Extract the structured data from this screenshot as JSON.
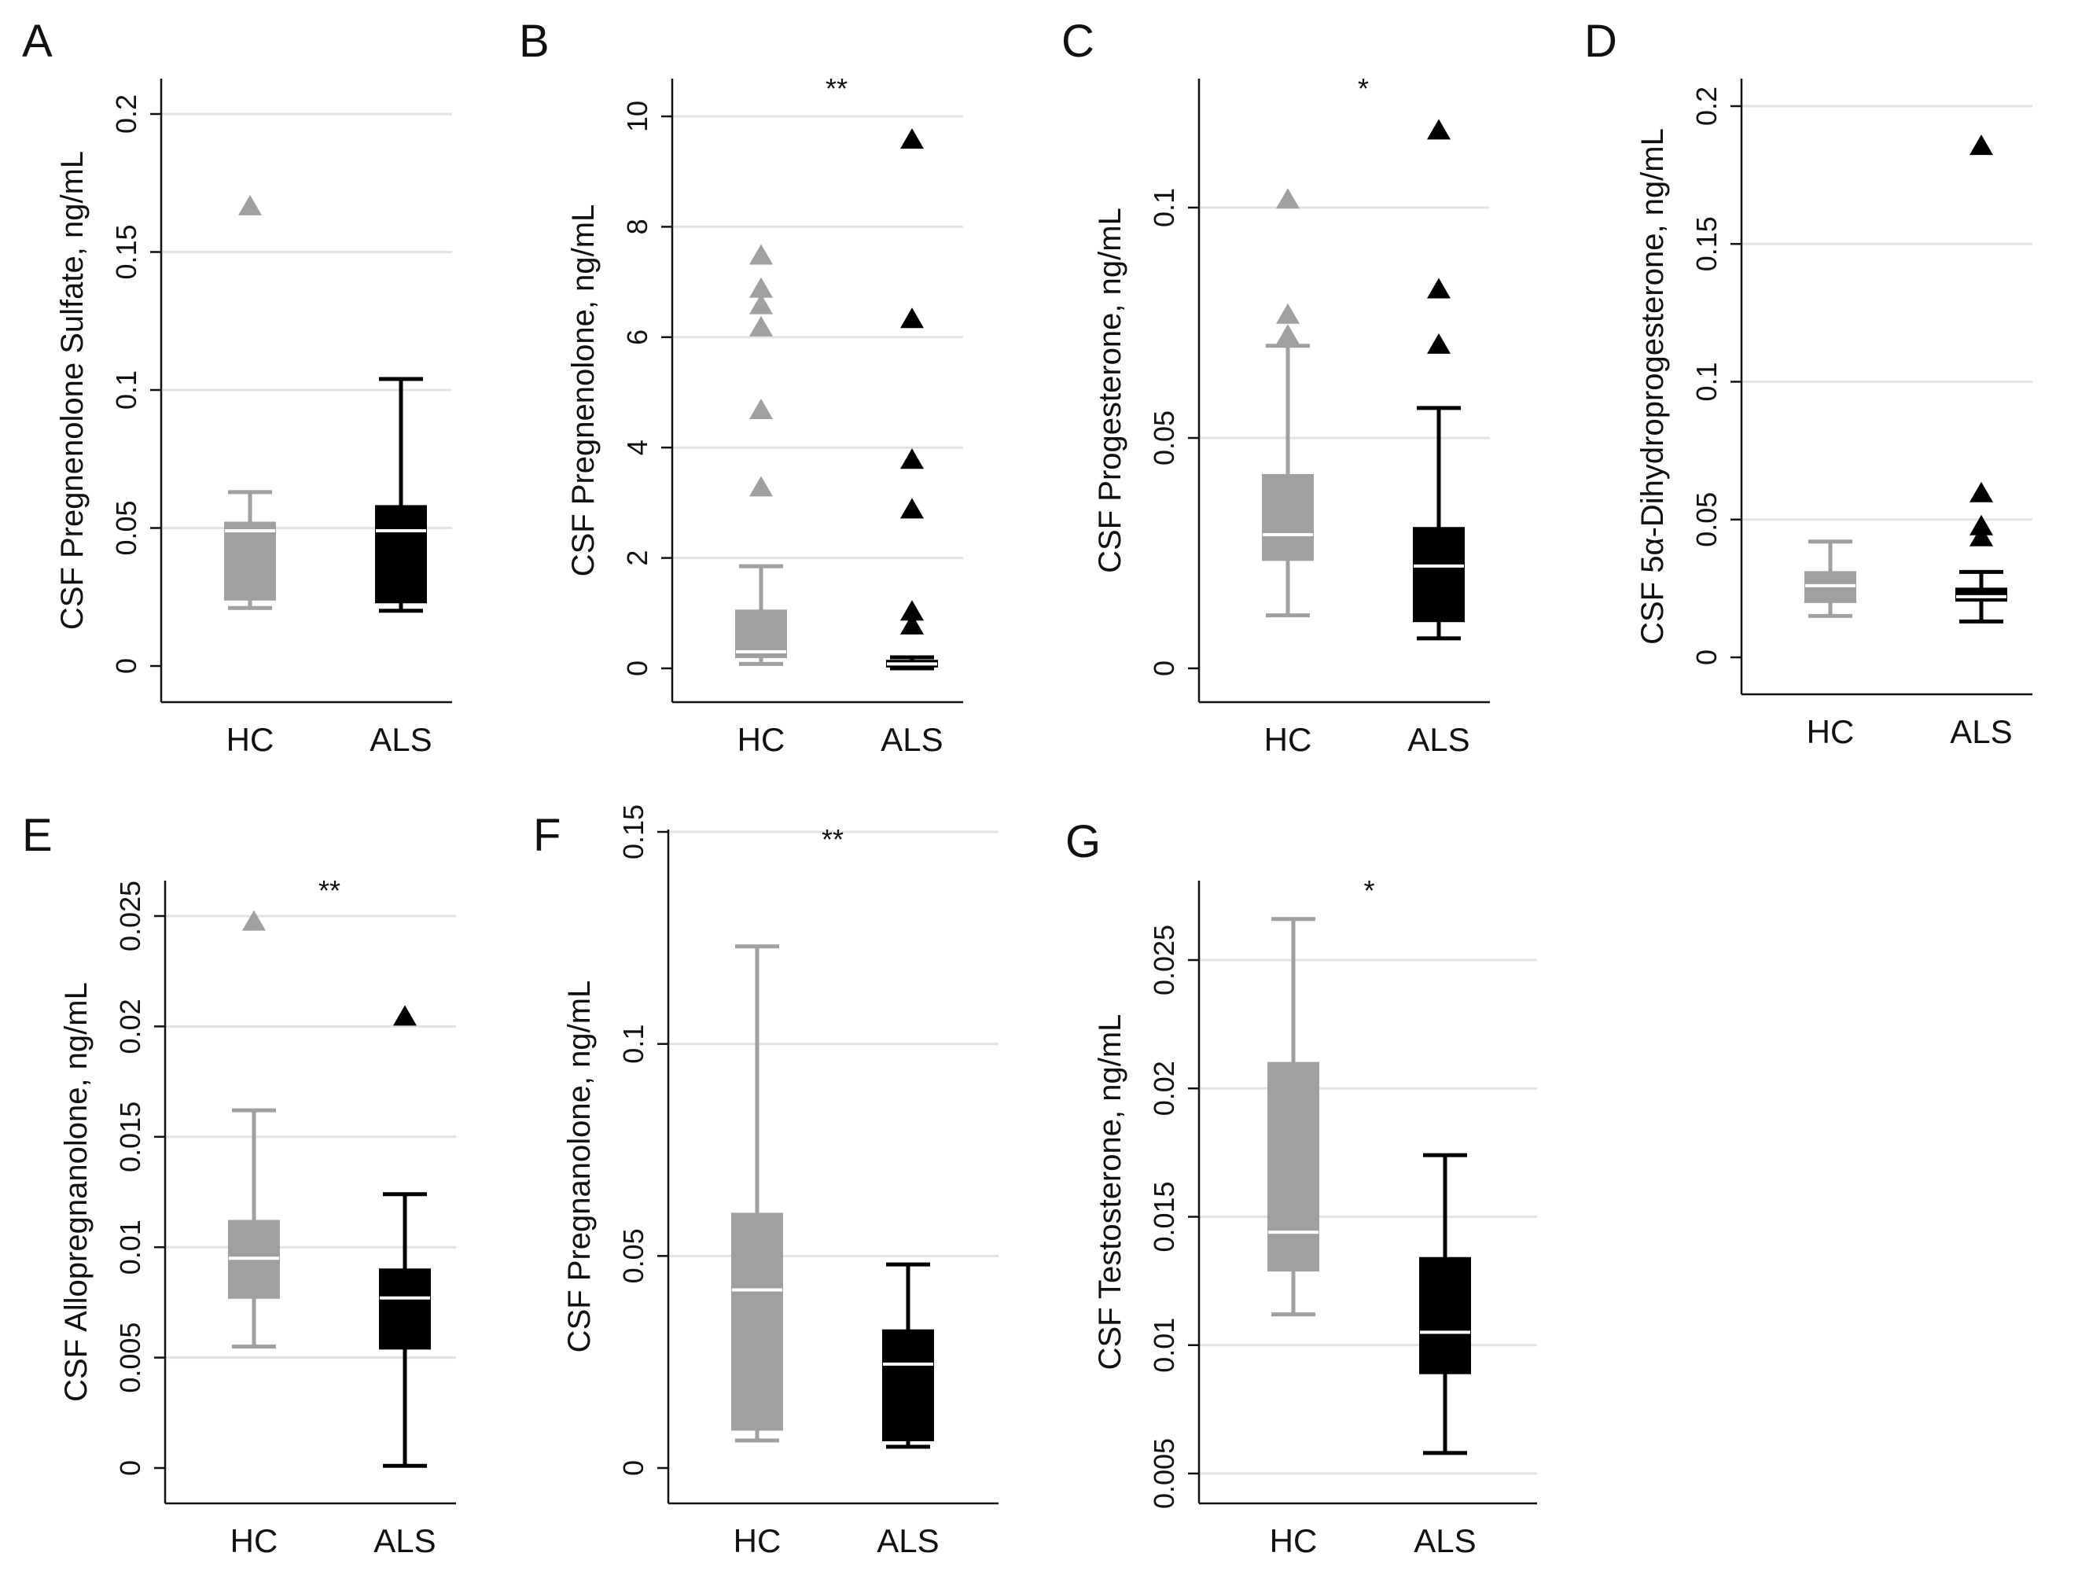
{
  "figure": {
    "background": "#ffffff"
  },
  "colors": {
    "HC": "#a0a0a0",
    "ALS": "#000000",
    "grid": "#e3e3e3",
    "axis": "#111111",
    "median_line": "#ffffff"
  },
  "chart_data": [
    {
      "panel": "A",
      "type": "box",
      "ylabel": "CSF Pregnenolone Sulfate, ng/mL",
      "categories": [
        "HC",
        "ALS"
      ],
      "ylim": [
        0,
        0.2
      ],
      "yticks": [
        "0",
        "0.05",
        "0.1",
        "0.15",
        "0.2"
      ],
      "grid": true,
      "significance": "",
      "series": [
        {
          "name": "HC",
          "whisker_low": 0.021,
          "q1": 0.024,
          "median": 0.049,
          "q3": 0.052,
          "whisker_high": 0.063,
          "outliers": [
            0.167
          ]
        },
        {
          "name": "ALS",
          "whisker_low": 0.02,
          "q1": 0.023,
          "median": 0.049,
          "q3": 0.058,
          "whisker_high": 0.104,
          "outliers": []
        }
      ]
    },
    {
      "panel": "B",
      "type": "box",
      "ylabel": "CSF Pregnenolone, ng/mL",
      "categories": [
        "HC",
        "ALS"
      ],
      "ylim": [
        0,
        10
      ],
      "yticks": [
        "0",
        "2",
        "4",
        "6",
        "8",
        "10"
      ],
      "grid": true,
      "significance": "**",
      "series": [
        {
          "name": "HC",
          "whisker_low": 0.08,
          "q1": 0.2,
          "median": 0.3,
          "q3": 1.05,
          "whisker_high": 1.85,
          "outliers": [
            3.3,
            4.7,
            6.2,
            6.6,
            6.9,
            7.5
          ]
        },
        {
          "name": "ALS",
          "whisker_low": 0.0,
          "q1": 0.03,
          "median": 0.08,
          "q3": 0.14,
          "whisker_high": 0.2,
          "outliers": [
            0.8,
            1.05,
            2.9,
            3.8,
            6.35,
            9.6
          ]
        }
      ]
    },
    {
      "panel": "C",
      "type": "box",
      "ylabel": "CSF Progesterone, ng/mL",
      "categories": [
        "HC",
        "ALS"
      ],
      "ylim": [
        0,
        0.13
      ],
      "yticks": [
        "0",
        "0.05",
        "0.1"
      ],
      "grid": true,
      "significance": "*",
      "series": [
        {
          "name": "HC",
          "whisker_low": 0.0115,
          "q1": 0.0235,
          "median": 0.029,
          "q3": 0.042,
          "whisker_high": 0.07,
          "outliers": [
            0.0725,
            0.077,
            0.102
          ]
        },
        {
          "name": "ALS",
          "whisker_low": 0.0065,
          "q1": 0.0102,
          "median": 0.0222,
          "q3": 0.0305,
          "whisker_high": 0.0565,
          "outliers": [
            0.0705,
            0.0825,
            0.117
          ]
        }
      ]
    },
    {
      "panel": "D",
      "type": "box",
      "ylabel": "CSF 5α-Dihydroprogesterone, ng/mL",
      "categories": [
        "HC",
        "ALS"
      ],
      "ylim": [
        0,
        0.2
      ],
      "yticks": [
        "0",
        "0.05",
        "0.1",
        "0.15",
        "0.2"
      ],
      "grid": true,
      "significance": "",
      "series": [
        {
          "name": "HC",
          "whisker_low": 0.015,
          "q1": 0.02,
          "median": 0.026,
          "q3": 0.031,
          "whisker_high": 0.042,
          "outliers": []
        },
        {
          "name": "ALS",
          "whisker_low": 0.013,
          "q1": 0.0205,
          "median": 0.022,
          "q3": 0.025,
          "whisker_high": 0.031,
          "outliers": [
            0.044,
            0.048,
            0.06,
            0.186
          ]
        }
      ]
    },
    {
      "panel": "E",
      "type": "box",
      "ylabel": "CSF Allopregnanolone, ng/mL",
      "categories": [
        "HC",
        "ALS"
      ],
      "ylim": [
        0,
        0.025
      ],
      "yticks": [
        "0",
        "0.005",
        "0.01",
        "0.015",
        "0.02",
        "0.025"
      ],
      "grid": true,
      "significance": "**",
      "series": [
        {
          "name": "HC",
          "whisker_low": 0.0055,
          "q1": 0.0077,
          "median": 0.0095,
          "q3": 0.0112,
          "whisker_high": 0.0162,
          "outliers": [
            0.0248
          ]
        },
        {
          "name": "ALS",
          "whisker_low": 0.0001,
          "q1": 0.0054,
          "median": 0.0077,
          "q3": 0.009,
          "whisker_high": 0.0124,
          "outliers": [
            0.0205
          ]
        }
      ]
    },
    {
      "panel": "F",
      "type": "box",
      "ylabel": "CSF Pregnanolone, ng/mL",
      "categories": [
        "HC",
        "ALS"
      ],
      "ylim": [
        0,
        0.15
      ],
      "yticks": [
        "0",
        "0.05",
        "0.1",
        "0.15"
      ],
      "grid": true,
      "significance": "**",
      "series": [
        {
          "name": "HC",
          "whisker_low": 0.0065,
          "q1": 0.009,
          "median": 0.042,
          "q3": 0.06,
          "whisker_high": 0.123,
          "outliers": []
        },
        {
          "name": "ALS",
          "whisker_low": 0.005,
          "q1": 0.0065,
          "median": 0.0245,
          "q3": 0.0325,
          "whisker_high": 0.048,
          "outliers": []
        }
      ]
    },
    {
      "panel": "G",
      "type": "box",
      "ylabel": "CSF Testosterone, ng/mL",
      "categories": [
        "HC",
        "ALS"
      ],
      "ylim": [
        0.004,
        0.0285
      ],
      "yticks": [
        "0.005",
        "0.01",
        "0.015",
        "0.02",
        "0.025"
      ],
      "grid": true,
      "significance": "*",
      "series": [
        {
          "name": "HC",
          "whisker_low": 0.0112,
          "q1": 0.0129,
          "median": 0.0144,
          "q3": 0.021,
          "whisker_high": 0.0266,
          "outliers": []
        },
        {
          "name": "ALS",
          "whisker_low": 0.0058,
          "q1": 0.0089,
          "median": 0.0105,
          "q3": 0.0134,
          "whisker_high": 0.0174,
          "outliers": []
        }
      ]
    }
  ]
}
